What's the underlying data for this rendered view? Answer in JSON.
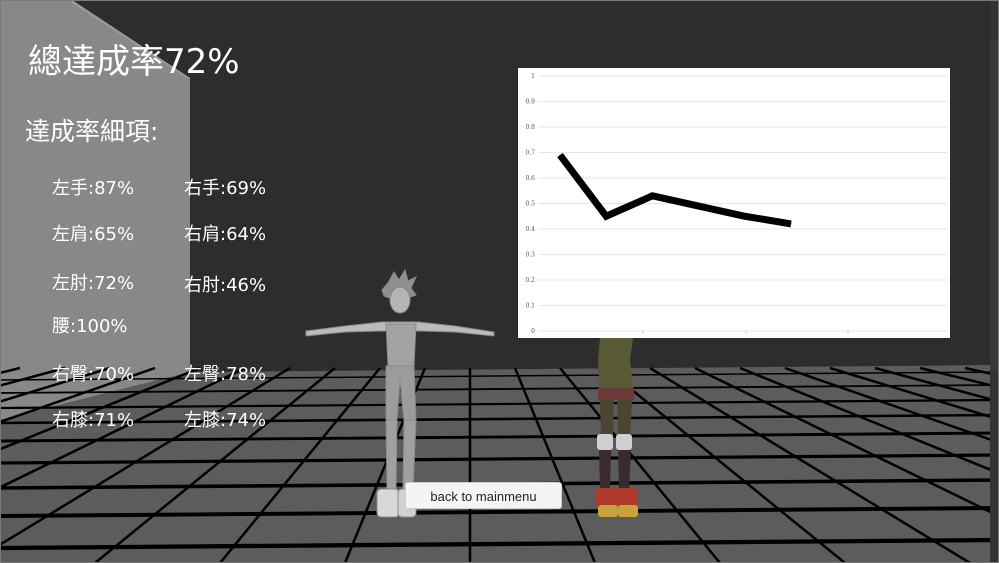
{
  "overall_label": "總達成率72%",
  "details_title": "達成率細項:",
  "stats": {
    "left_hand": "左手:87%",
    "right_hand": "右手:69%",
    "left_shoulder": "左肩:65%",
    "right_shoulder": "右肩:64%",
    "left_elbow": "左肘:72%",
    "right_elbow": "右肘:46%",
    "waist": "腰:100%",
    "right_hip": "右臀:70%",
    "left_hip": "左臀:78%",
    "right_knee": "右膝:71%",
    "left_knee": "左膝:74%"
  },
  "back_button_label": "back to mainmenu",
  "chart_data": {
    "type": "line",
    "x": [
      1,
      2,
      3,
      4,
      5,
      6
    ],
    "y": [
      0.69,
      0.45,
      0.53,
      0.49,
      0.45,
      0.42
    ],
    "ylim": [
      0,
      1
    ],
    "yticks": [
      "0",
      "0.1",
      "0.2",
      "0.3",
      "0.4",
      "0.5",
      "0.6",
      "0.7",
      "0.8",
      "0.9",
      "1"
    ],
    "grid": true,
    "line_color": "#000000"
  }
}
